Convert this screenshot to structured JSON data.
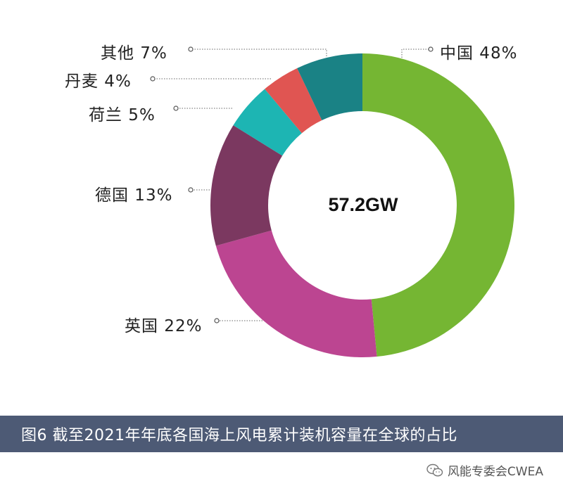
{
  "chart_data": {
    "type": "pie",
    "center_label": "57.2GW",
    "slices": [
      {
        "name": "中国",
        "value": 48,
        "label": "中国  48%",
        "color": "#75b633"
      },
      {
        "name": "英国",
        "value": 22,
        "label": "英国 22%",
        "color": "#bc4591"
      },
      {
        "name": "德国",
        "value": 13,
        "label": "德国 13%",
        "color": "#7b3860"
      },
      {
        "name": "荷兰",
        "value": 5,
        "label": "荷兰 5%",
        "color": "#1db5b3"
      },
      {
        "name": "丹麦",
        "value": 4,
        "label": "丹麦 4%",
        "color": "#e05552"
      },
      {
        "name": "其他",
        "value": 7,
        "label": "其他 7%",
        "color": "#1a8285"
      }
    ]
  },
  "caption": "图6 截至2021年年底各国海上风电累计装机容量在全球的占比",
  "watermark": {
    "icon": "wechat-icon",
    "text": "风能专委会CWEA"
  }
}
